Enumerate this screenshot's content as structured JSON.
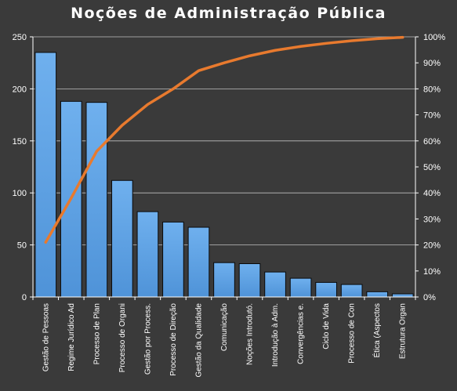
{
  "chart_data": {
    "type": "bar",
    "title": "Noções de Administração Pública",
    "categories": [
      "Gestão de Pessoas",
      "Regime Jurídico Ad",
      "Processo de Plan",
      "Processo de Organi",
      "Gestão por Process.",
      "Processo de Direção",
      "Gestão da Qualidade",
      "Comunicação",
      "Noções Introdutó.",
      "Introdução à Adm.",
      "Convergências e.",
      "Ciclo de Vida",
      "Processo de Con",
      "Ética (Aspectos",
      "Estrutura Organ"
    ],
    "series": [
      {
        "type": "bar",
        "values": [
          235,
          188,
          187,
          112,
          82,
          72,
          67,
          33,
          32,
          24,
          18,
          14,
          12,
          5,
          3
        ]
      },
      {
        "type": "line",
        "axis": "secondary",
        "values": [
          21,
          38,
          56,
          66,
          74,
          80,
          87,
          90,
          92.7,
          94.8,
          96.3,
          97.5,
          98.5,
          99.3,
          99.8
        ]
      }
    ],
    "ylim": [
      0,
      250
    ],
    "yticks": [
      0,
      50,
      100,
      150,
      200,
      250
    ],
    "y2lim": [
      0,
      100
    ],
    "y2ticks": [
      "0%",
      "10%",
      "20%",
      "30%",
      "40%",
      "50%",
      "60%",
      "70%",
      "80%",
      "90%",
      "100%"
    ],
    "grid": true,
    "legend": "none",
    "colors": {
      "background": "#3a3a3a",
      "bar_fill": "#4f93d8",
      "bar_stroke": "#0a0a0a",
      "line": "#e87a2e",
      "gridline": "#bfbfbf",
      "axis": "#ffffff",
      "text": "#ffffff"
    }
  }
}
